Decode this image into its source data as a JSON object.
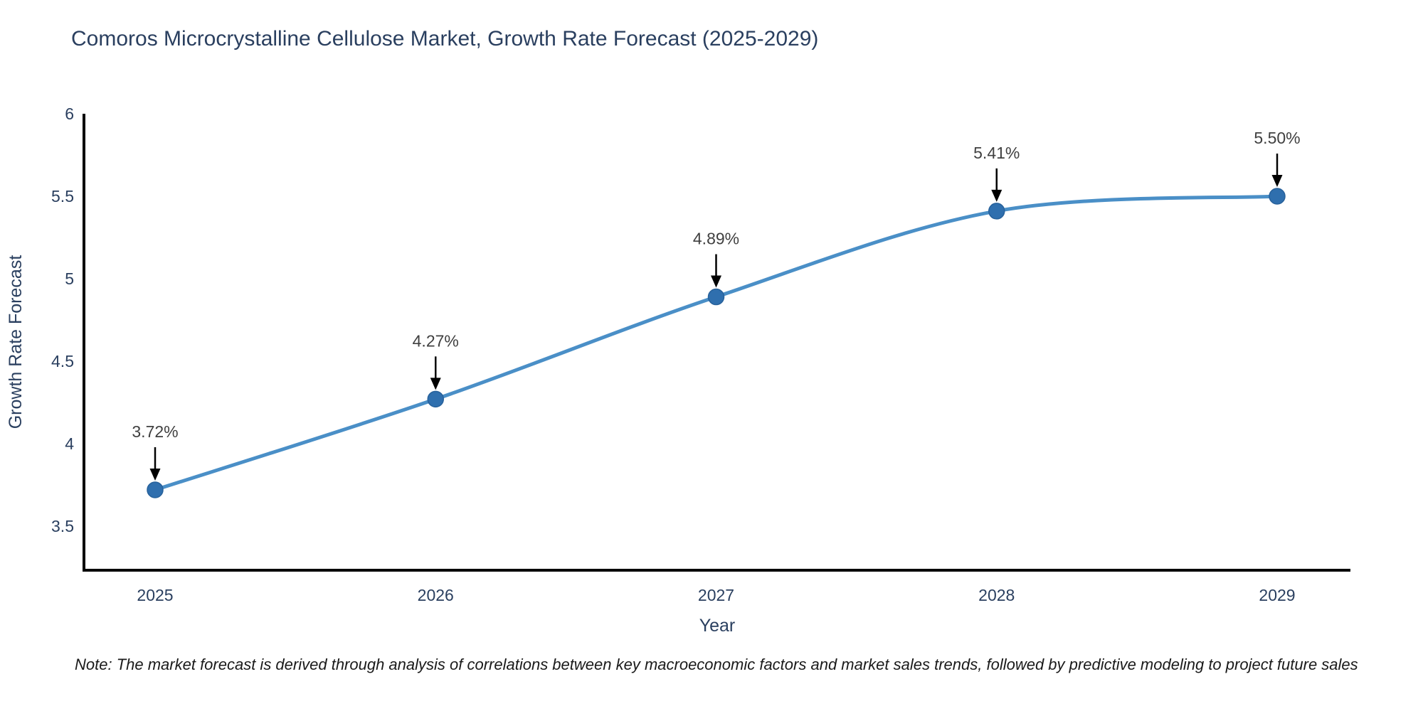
{
  "page": {
    "title": "Comoros Microcrystalline Cellulose Market, Growth Rate Forecast (2025-2029)"
  },
  "note": {
    "text": "Note: The market forecast is derived through analysis of correlations between key macroeconomic factors and market sales trends, followed by predictive modeling to project future sales"
  },
  "chart_data": {
    "type": "line",
    "title": "Comoros Microcrystalline Cellulose Market, Growth Rate Forecast (2025-2029)",
    "xlabel": "Year",
    "ylabel": "Growth Rate Forecast",
    "x": [
      2025,
      2026,
      2027,
      2028,
      2029
    ],
    "values": [
      3.72,
      4.27,
      4.89,
      5.41,
      5.5
    ],
    "point_labels": [
      "3.72%",
      "4.27%",
      "4.89%",
      "5.41%",
      "5.50%"
    ],
    "xtick_labels": [
      "2025",
      "2026",
      "2027",
      "2028",
      "2029"
    ],
    "yticks": [
      6,
      5.5,
      5,
      4.5,
      4,
      3.5
    ],
    "ytick_labels": [
      "6",
      "5.5",
      "5",
      "4.5",
      "4",
      "3.5"
    ],
    "ylim": [
      3.23,
      6
    ],
    "grid": false,
    "legend_position": "none",
    "line_shape": "spline",
    "colors": {
      "line": "#4a8fc7",
      "marker_fill": "#2f6fae",
      "marker_edge": "#27619b",
      "axis_line": "#000000",
      "tick_text": "#2a3f5f",
      "axis_title_text": "#2a3f5f",
      "title_text": "#2a3f5f",
      "annotation_text": "#404040",
      "annotation_arrow": "#000000",
      "background": "#ffffff"
    }
  }
}
